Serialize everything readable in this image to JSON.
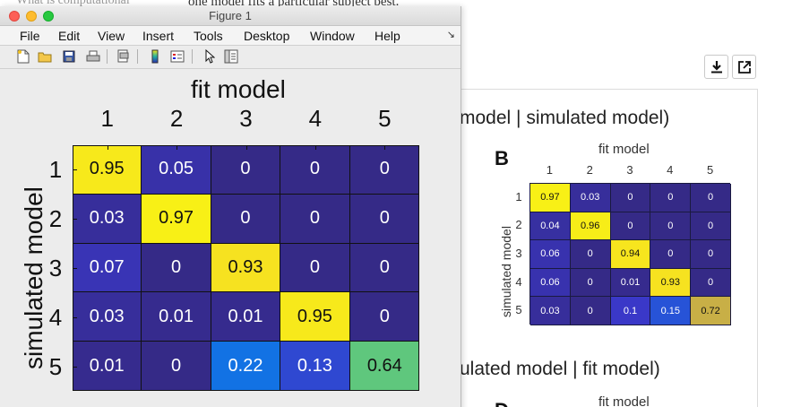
{
  "background": {
    "top_left_text": "What is computational",
    "top_mid_text": "one model fits a particular subject best.",
    "toolbar": {
      "download_icon": "download-icon",
      "open_external_icon": "open-external-icon"
    },
    "panel": {
      "heading_top": "model | simulated model)",
      "heading_bottom": "ulated model | fit model)",
      "letter_b": "B",
      "letter_d": "D",
      "mini_title": "fit model",
      "mini_title_bottom": "fit model",
      "mini_ylabel": "simulated model",
      "mini_xticks": [
        "1",
        "2",
        "3",
        "4",
        "5"
      ],
      "mini_yticks": [
        "1",
        "2",
        "3",
        "4",
        "5"
      ],
      "mini_matrix": [
        [
          "0.97",
          "0.03",
          "0",
          "0",
          "0"
        ],
        [
          "0.04",
          "0.96",
          "0",
          "0",
          "0"
        ],
        [
          "0.06",
          "0",
          "0.94",
          "0",
          "0"
        ],
        [
          "0.06",
          "0",
          "0.01",
          "0.93",
          "0"
        ],
        [
          "0.03",
          "0",
          "0.1",
          "0.15",
          "0.72"
        ]
      ]
    }
  },
  "window": {
    "title": "Figure 1",
    "menus": [
      "File",
      "Edit",
      "View",
      "Insert",
      "Tools",
      "Desktop",
      "Window",
      "Help"
    ],
    "toolbar_icons": [
      "new-figure-icon",
      "open-file-icon",
      "save-icon",
      "print-icon",
      "print-preview-icon",
      "colorbar-icon",
      "legend-icon",
      "pointer-icon",
      "property-inspector-icon"
    ]
  },
  "chart_data": {
    "type": "heatmap",
    "title": "",
    "xlabel": "fit model",
    "ylabel": "simulated model",
    "x_ticks": [
      "1",
      "2",
      "3",
      "4",
      "5"
    ],
    "y_ticks": [
      "1",
      "2",
      "3",
      "4",
      "5"
    ],
    "matrix": [
      [
        "0.95",
        "0.05",
        "0",
        "0",
        "0"
      ],
      [
        "0.03",
        "0.97",
        "0",
        "0",
        "0"
      ],
      [
        "0.07",
        "0",
        "0.93",
        "0",
        "0"
      ],
      [
        "0.03",
        "0.01",
        "0.01",
        "0.95",
        "0"
      ],
      [
        "0.01",
        "0",
        "0.22",
        "0.13",
        "0.64"
      ]
    ],
    "colormap": "parula"
  }
}
